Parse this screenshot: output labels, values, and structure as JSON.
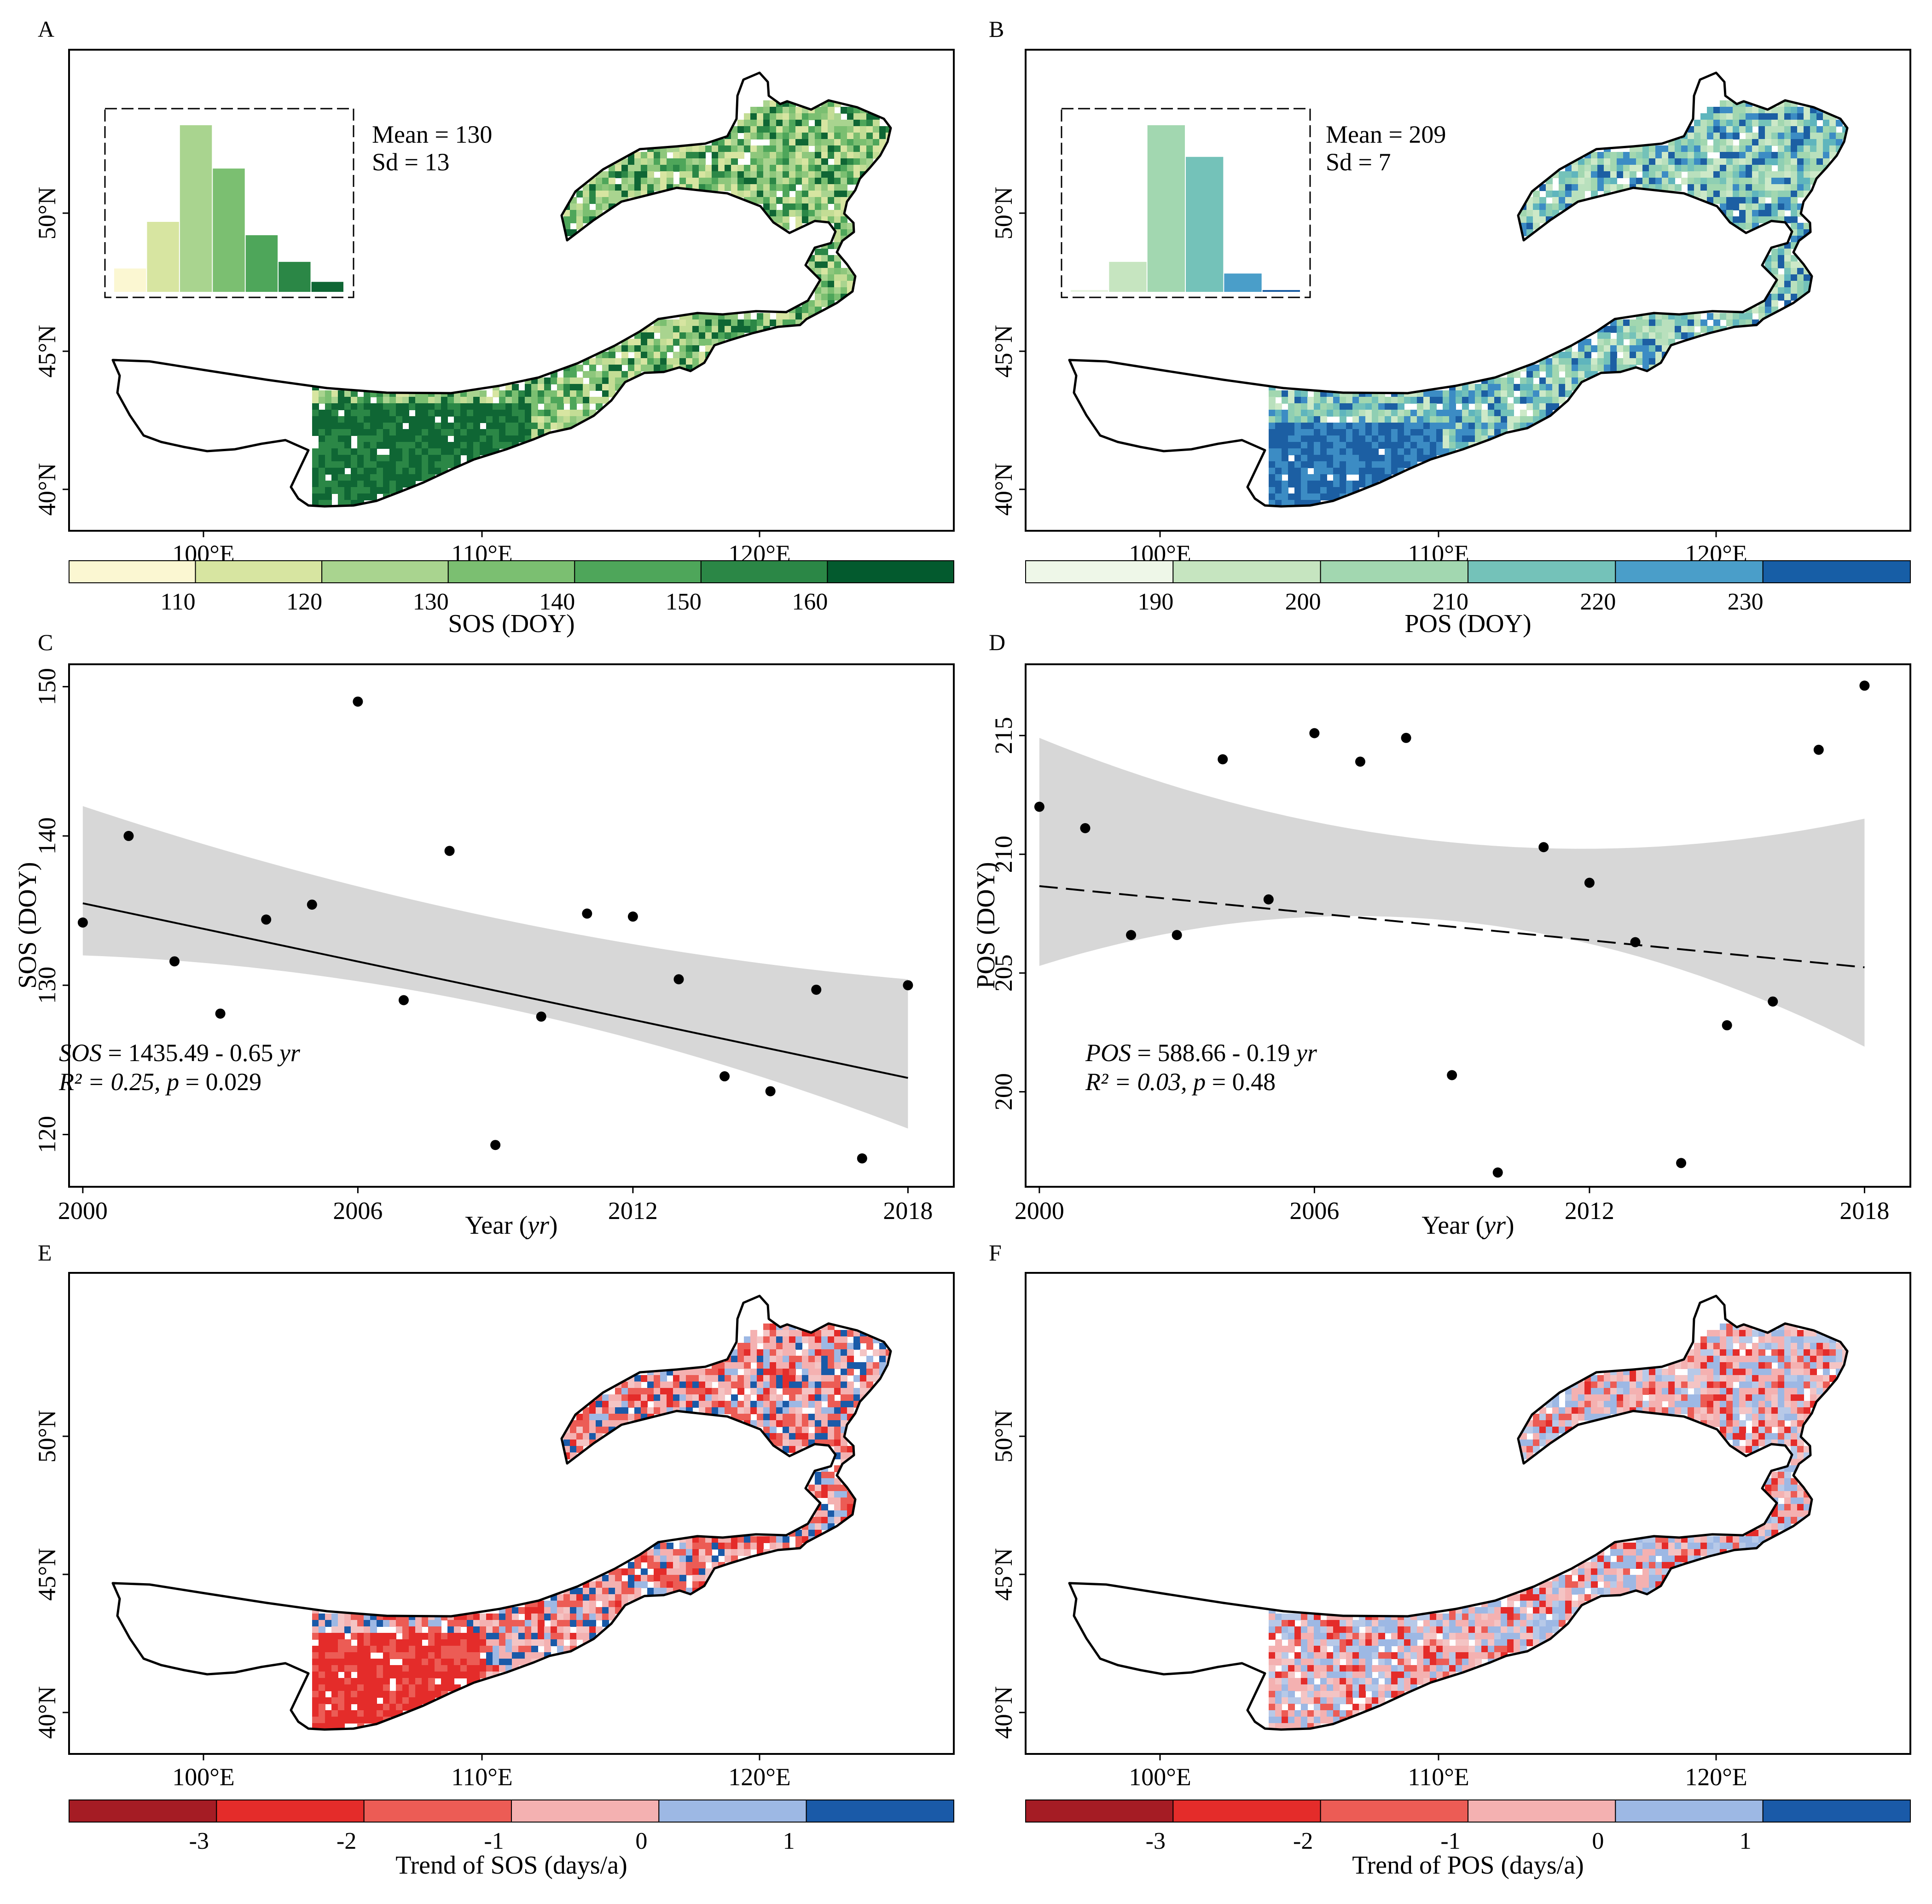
{
  "panels": {
    "A": {
      "letter": "A",
      "map_kind": "sos",
      "hist": {
        "mean_label": "Mean = 130",
        "sd_label": "Sd = 13",
        "bars": [
          {
            "value": 0.14,
            "color": "#fbf7d2"
          },
          {
            "value": 0.42,
            "color": "#d7e5a1"
          },
          {
            "value": 1.0,
            "color": "#a9d48f"
          },
          {
            "value": 0.74,
            "color": "#7bbf71"
          },
          {
            "value": 0.34,
            "color": "#4ea65a"
          },
          {
            "value": 0.18,
            "color": "#2b8746"
          },
          {
            "value": 0.06,
            "color": "#0f6634"
          }
        ]
      },
      "lat_ticks": [
        "40°N",
        "45°N",
        "50°N"
      ],
      "lon_ticks": [
        "100°E",
        "110°E",
        "120°E"
      ],
      "colorbar": {
        "colors": [
          "#fbf7d2",
          "#d7e5a1",
          "#a9d48f",
          "#7bbf71",
          "#4ea65a",
          "#2b8746",
          "#035a2e"
        ],
        "ticks": [
          "110",
          "120",
          "130",
          "140",
          "150",
          "160"
        ],
        "title": "SOS (DOY)"
      }
    },
    "B": {
      "letter": "B",
      "map_kind": "pos",
      "hist": {
        "mean_label": "Mean = 209",
        "sd_label": "Sd = 7",
        "bars": [
          {
            "value": 0.005,
            "color": "#e6f3df"
          },
          {
            "value": 0.18,
            "color": "#c6e5c0"
          },
          {
            "value": 1.0,
            "color": "#a2d7b0"
          },
          {
            "value": 0.81,
            "color": "#74c2b9"
          },
          {
            "value": 0.11,
            "color": "#4a9ec9"
          },
          {
            "value": 0.005,
            "color": "#1c5fa3"
          }
        ]
      },
      "lat_ticks": [
        "40°N",
        "45°N",
        "50°N"
      ],
      "lon_ticks": [
        "100°E",
        "110°E",
        "120°E"
      ],
      "colorbar": {
        "colors": [
          "#eef7e8",
          "#c6e5c0",
          "#a2d7b0",
          "#74c2b9",
          "#4a9ec9",
          "#175ea6"
        ],
        "ticks": [
          "190",
          "200",
          "210",
          "220",
          "230"
        ],
        "title": "POS  (DOY)"
      }
    },
    "C": {
      "letter": "C"
    },
    "D": {
      "letter": "D"
    },
    "E": {
      "letter": "E",
      "map_kind": "sos_trend",
      "lat_ticks": [
        "40°N",
        "45°N",
        "50°N"
      ],
      "lon_ticks": [
        "100°E",
        "110°E",
        "120°E"
      ],
      "colorbar": {
        "colors": [
          "#a51c24",
          "#e42c2a",
          "#ec5c55",
          "#f4b1b1",
          "#9db8e4",
          "#1a5aa8"
        ],
        "ticks": [
          "-3",
          "-2",
          "-1",
          "0",
          "1"
        ],
        "title": "Trend of SOS (days/a)"
      }
    },
    "F": {
      "letter": "F",
      "map_kind": "pos_trend",
      "lat_ticks": [
        "40°N",
        "45°N",
        "50°N"
      ],
      "lon_ticks": [
        "100°E",
        "110°E",
        "120°E"
      ],
      "colorbar": {
        "colors": [
          "#a51c24",
          "#e42c2a",
          "#ec5c55",
          "#f4b1b1",
          "#9db8e4",
          "#1a5aa8"
        ],
        "ticks": [
          "-3",
          "-2",
          "-1",
          "0",
          "1"
        ],
        "title": "Trend of POS (days/a)"
      }
    }
  },
  "chart_data": [
    {
      "panel": "C",
      "type": "scatter",
      "xlabel_main": "Year (",
      "xlabel_italic": "yr",
      "xlabel_end": ")",
      "ylabel": "SOS (DOY)",
      "xlim": [
        1999.7,
        2019.0
      ],
      "ylim": [
        116.5,
        151.5
      ],
      "xticks": [
        2000,
        2006,
        2012,
        2018
      ],
      "yticks": [
        120,
        130,
        140,
        150
      ],
      "x": [
        2000,
        2001,
        2002,
        2003,
        2004,
        2005,
        2006,
        2007,
        2008,
        2009,
        2010,
        2011,
        2012,
        2013,
        2014,
        2015,
        2016,
        2017,
        2018
      ],
      "y": [
        134.2,
        140.0,
        131.6,
        128.1,
        134.4,
        135.4,
        149.0,
        129.0,
        139.0,
        119.3,
        127.9,
        134.8,
        134.6,
        130.4,
        123.9,
        122.9,
        129.7,
        118.4,
        130.0
      ],
      "fit": {
        "slope": -0.65,
        "intercept": 1435.49,
        "style": "solid"
      },
      "ci": {
        "x": [
          2000,
          2009,
          2018
        ],
        "lower": [
          132.0,
          128.6,
          120.4
        ],
        "upper": [
          142.0,
          134.5,
          130.4
        ]
      },
      "equation_lhs": "SOS",
      "equation_rest": " = 1435.49 - 0.65 ",
      "equation_var": "yr",
      "stats_r2": "R² = 0.25, ",
      "stats_p": "p",
      "stats_p_val": " = 0.029"
    },
    {
      "panel": "D",
      "type": "scatter",
      "xlabel_main": "Year (",
      "xlabel_italic": "yr",
      "xlabel_end": ")",
      "ylabel": "POS (DOY)",
      "xlim": [
        1999.7,
        2019.0
      ],
      "ylim": [
        196.0,
        218.0
      ],
      "xticks": [
        2000,
        2006,
        2012,
        2018
      ],
      "yticks": [
        200,
        205,
        210,
        215
      ],
      "x": [
        2000,
        2001,
        2002,
        2003,
        2004,
        2005,
        2006,
        2007,
        2008,
        2009,
        2010,
        2011,
        2012,
        2013,
        2014,
        2015,
        2016,
        2017,
        2018
      ],
      "y": [
        212.0,
        211.1,
        206.6,
        206.6,
        214.0,
        208.1,
        215.1,
        213.9,
        214.9,
        200.7,
        196.6,
        210.3,
        208.8,
        206.3,
        197.0,
        202.8,
        203.8,
        214.4,
        217.1
      ],
      "fit": {
        "slope": -0.19,
        "intercept": 588.66,
        "style": "dashed"
      },
      "ci": {
        "x": [
          2000,
          2009,
          2018
        ],
        "lower": [
          205.3,
          207.2,
          201.9
        ],
        "upper": [
          214.9,
          210.5,
          211.5
        ]
      },
      "equation_lhs": "POS",
      "equation_rest": " =  588.66 - 0.19 ",
      "equation_var": "yr",
      "stats_r2": "R² = 0.03, ",
      "stats_p": "p",
      "stats_p_val": " = 0.48"
    }
  ]
}
